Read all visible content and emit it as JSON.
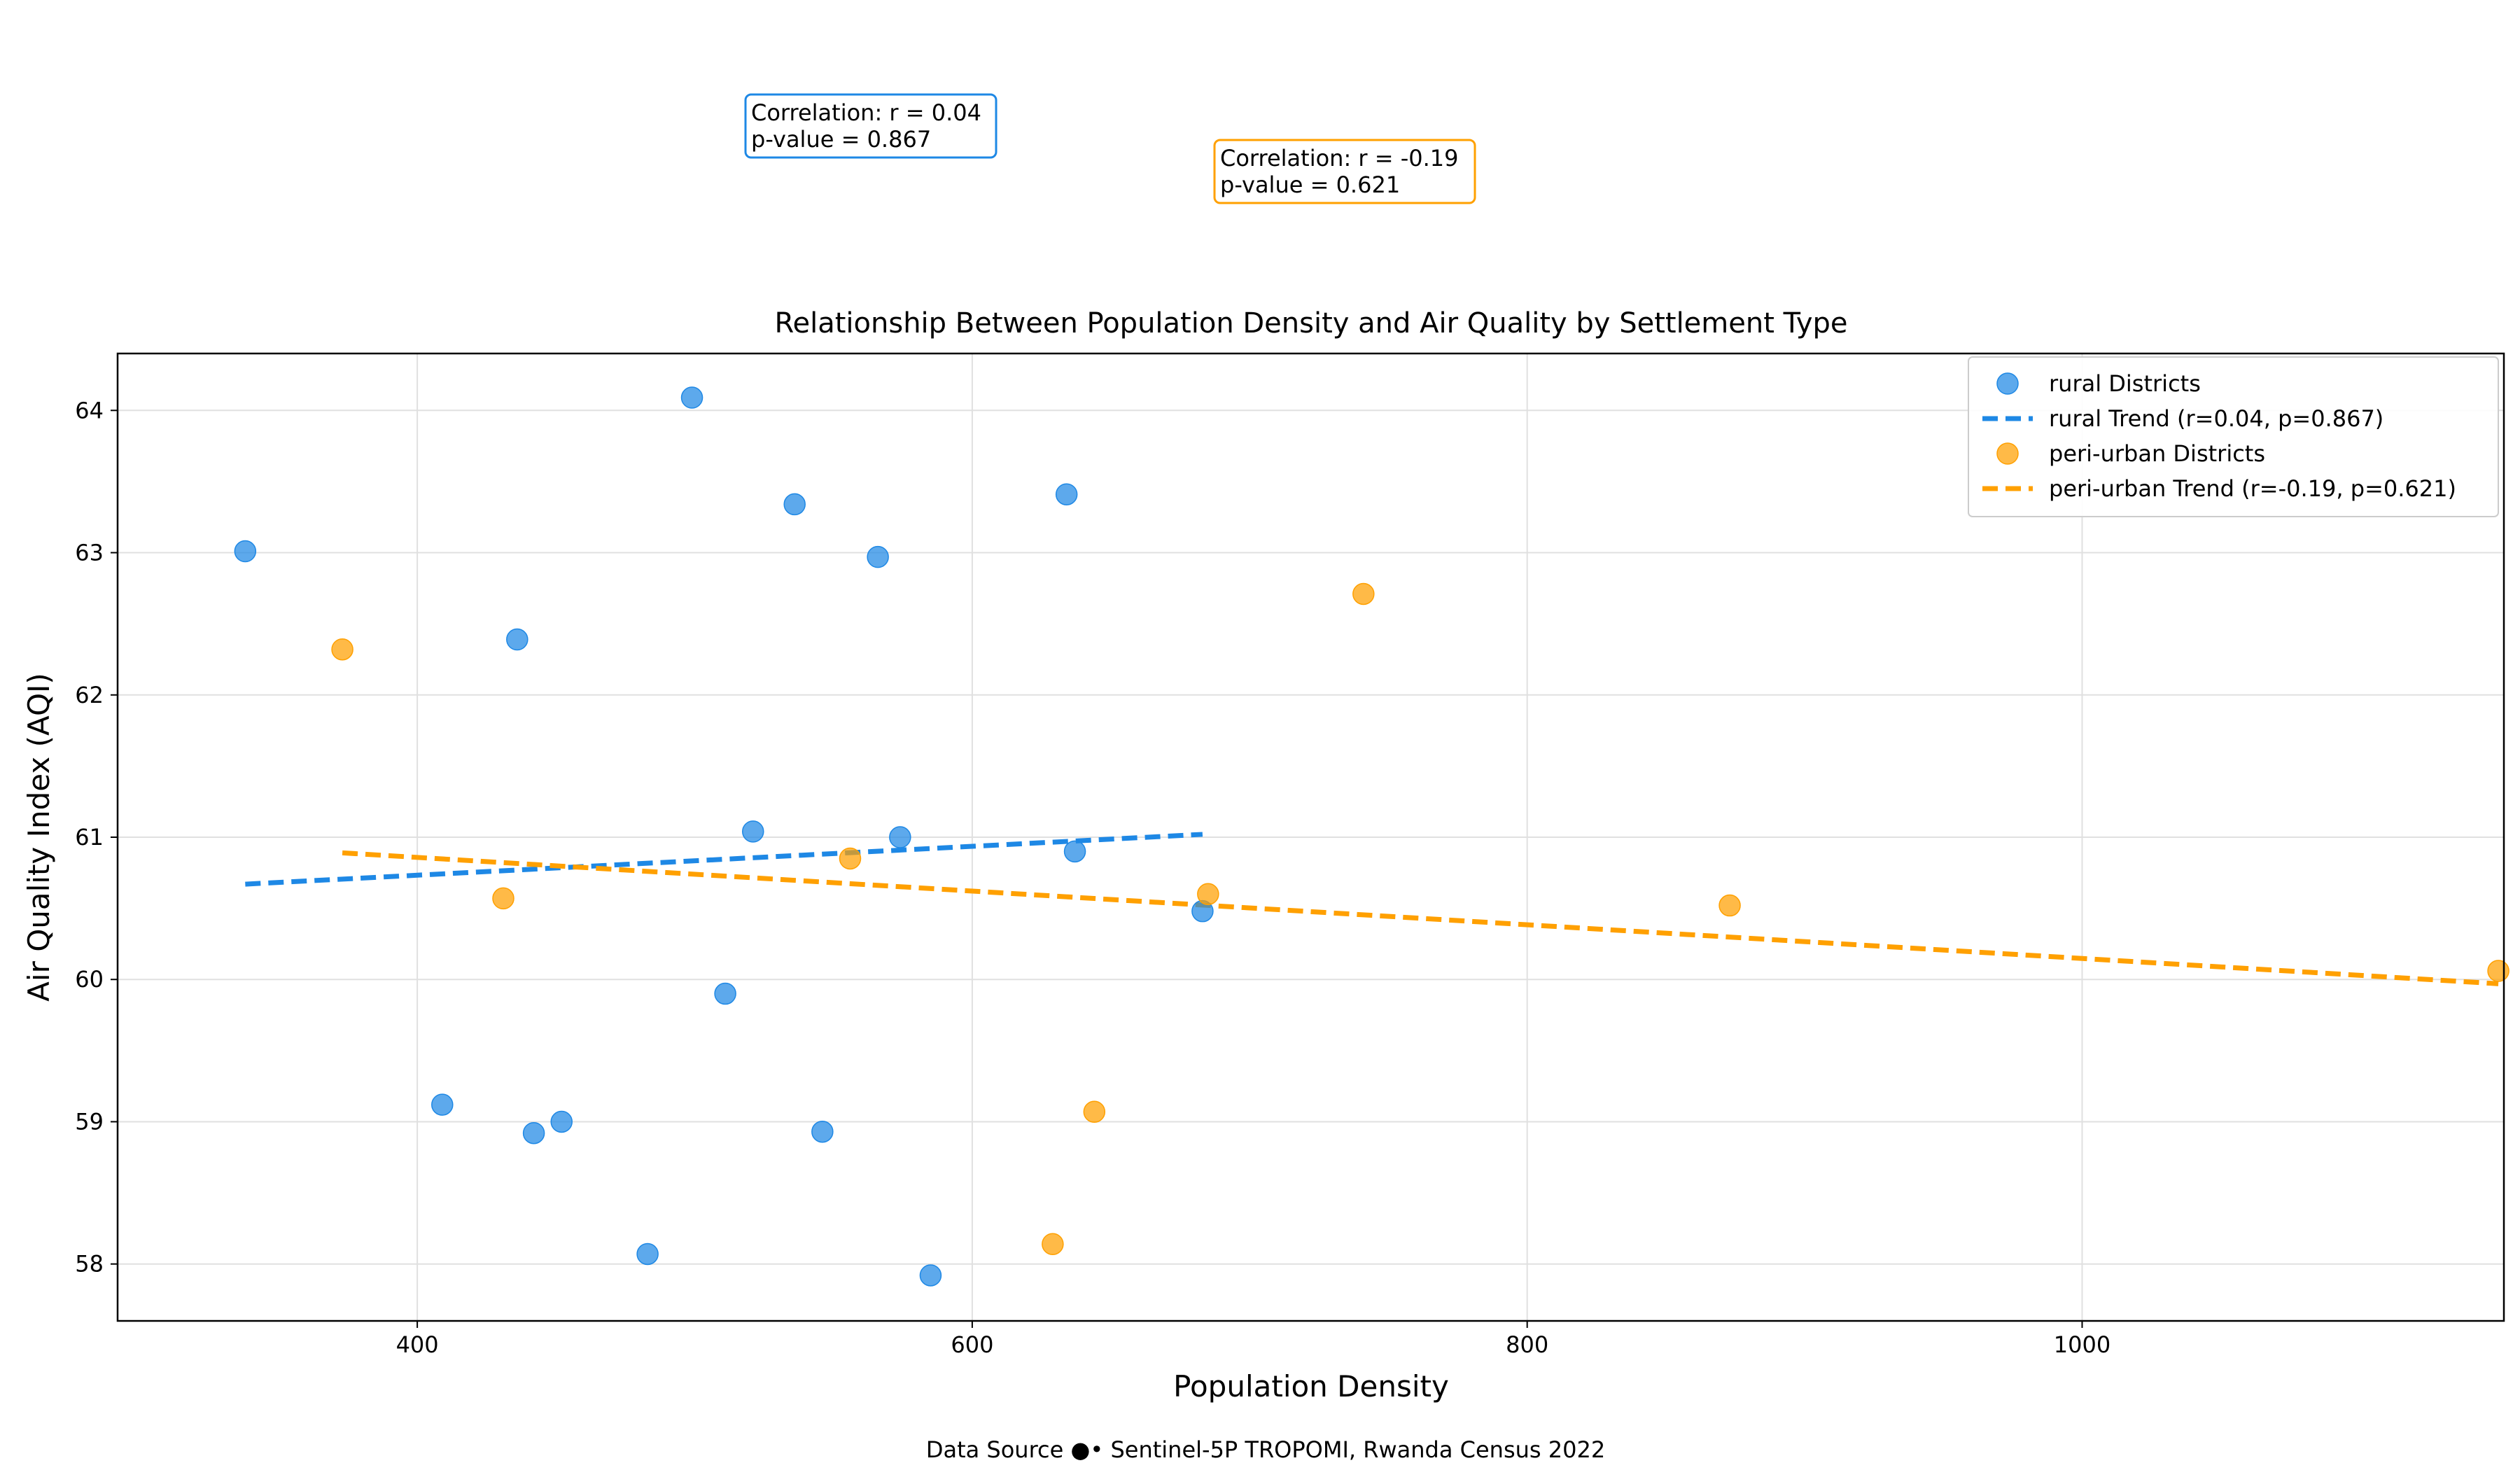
{
  "chart_data": {
    "type": "scatter",
    "title": "Relationship Between Population Density and Air Quality by Settlement Type",
    "xlabel": "Population Density",
    "ylabel": "Air Quality Index (AQI)",
    "xlim": [
      292,
      1152
    ],
    "ylim": [
      57.6,
      64.4
    ],
    "xticks": [
      400,
      600,
      800,
      1000
    ],
    "yticks": [
      58,
      59,
      60,
      61,
      62,
      63,
      64
    ],
    "grid": true,
    "legend_position": "top-right",
    "series": [
      {
        "name": "rural Districts",
        "kind": "scatter",
        "color": "#1E88E5",
        "points": [
          [
            338,
            63.01
          ],
          [
            409,
            59.12
          ],
          [
            436,
            62.39
          ],
          [
            442,
            58.92
          ],
          [
            452,
            59.0
          ],
          [
            483,
            58.07
          ],
          [
            499,
            64.09
          ],
          [
            511,
            59.9
          ],
          [
            521,
            61.04
          ],
          [
            536,
            63.34
          ],
          [
            546,
            58.93
          ],
          [
            566,
            62.97
          ],
          [
            574,
            61.0
          ],
          [
            585,
            57.92
          ],
          [
            634,
            63.41
          ],
          [
            637,
            60.9
          ],
          [
            683,
            60.48
          ]
        ]
      },
      {
        "name": "rural Trend (r=0.04, p=0.867)",
        "kind": "line",
        "color": "#1E88E5",
        "points": [
          [
            338,
            60.67
          ],
          [
            683,
            61.02
          ]
        ]
      },
      {
        "name": "peri-urban Districts",
        "kind": "scatter",
        "color": "#FFA000",
        "points": [
          [
            373,
            62.32
          ],
          [
            431,
            60.57
          ],
          [
            556,
            60.85
          ],
          [
            629,
            58.14
          ],
          [
            644,
            59.07
          ],
          [
            685,
            60.6
          ],
          [
            741,
            62.71
          ],
          [
            873,
            60.52
          ],
          [
            1150,
            60.06
          ]
        ]
      },
      {
        "name": "peri-urban Trend (r=-0.19, p=0.621)",
        "kind": "line",
        "color": "#FFA000",
        "points": [
          [
            373,
            60.89
          ],
          [
            1150,
            59.97
          ]
        ]
      }
    ],
    "annotations": [
      {
        "lines": [
          "Correlation: r = 0.04",
          "p-value = 0.867"
        ],
        "color": "#1E88E5"
      },
      {
        "lines": [
          "Correlation: r = -0.19",
          "p-value = 0.621"
        ],
        "color": "#FFA000"
      }
    ],
    "footer": "Data Source ●• Sentinel-5P TROPOMI, Rwanda Census 2022"
  }
}
